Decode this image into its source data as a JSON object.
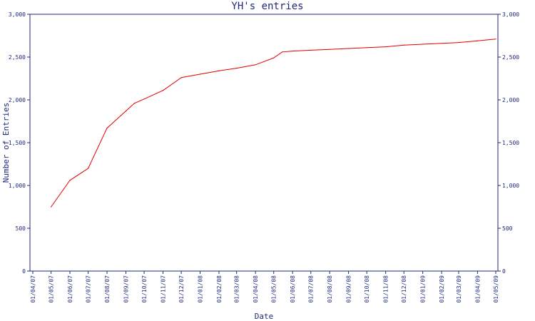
{
  "chart_data": {
    "type": "line",
    "title": "YH's entries",
    "xlabel": "Date",
    "ylabel": "Number of Entries",
    "ylim": [
      0,
      3000
    ],
    "y_ticks": [
      0,
      500,
      1000,
      1500,
      2000,
      2500,
      3000
    ],
    "y_tick_labels": [
      "0",
      "500",
      "1,000",
      "1,500",
      "2,000",
      "2,500",
      "3,000"
    ],
    "x_ticks": [
      "01/04/07",
      "01/05/07",
      "01/06/07",
      "01/07/07",
      "01/08/07",
      "01/09/07",
      "01/10/07",
      "01/11/07",
      "01/12/07",
      "01/01/08",
      "01/02/08",
      "01/03/08",
      "01/04/08",
      "01/05/08",
      "01/06/08",
      "01/07/08",
      "01/08/08",
      "01/09/08",
      "01/10/08",
      "01/11/08",
      "01/12/08",
      "01/01/09",
      "01/02/09",
      "01/03/09",
      "01/04/09",
      "01/05/09"
    ],
    "grid": false,
    "series": [
      {
        "color": "#e00000",
        "points": [
          {
            "x": "2007-05-01",
            "y": 750
          },
          {
            "x": "2007-06-01",
            "y": 1060
          },
          {
            "x": "2007-07-01",
            "y": 1200
          },
          {
            "x": "2007-08-01",
            "y": 1670
          },
          {
            "x": "2007-09-01",
            "y": 1870
          },
          {
            "x": "2007-09-15",
            "y": 1960
          },
          {
            "x": "2007-10-01",
            "y": 2010
          },
          {
            "x": "2007-11-01",
            "y": 2110
          },
          {
            "x": "2007-12-01",
            "y": 2260
          },
          {
            "x": "2008-01-01",
            "y": 2300
          },
          {
            "x": "2008-02-01",
            "y": 2340
          },
          {
            "x": "2008-03-01",
            "y": 2370
          },
          {
            "x": "2008-04-01",
            "y": 2410
          },
          {
            "x": "2008-05-01",
            "y": 2490
          },
          {
            "x": "2008-05-15",
            "y": 2560
          },
          {
            "x": "2008-06-01",
            "y": 2570
          },
          {
            "x": "2008-07-01",
            "y": 2580
          },
          {
            "x": "2008-08-01",
            "y": 2590
          },
          {
            "x": "2008-09-01",
            "y": 2600
          },
          {
            "x": "2008-10-01",
            "y": 2610
          },
          {
            "x": "2008-11-01",
            "y": 2620
          },
          {
            "x": "2008-12-01",
            "y": 2640
          },
          {
            "x": "2009-01-01",
            "y": 2650
          },
          {
            "x": "2009-02-01",
            "y": 2660
          },
          {
            "x": "2009-03-01",
            "y": 2670
          },
          {
            "x": "2009-04-01",
            "y": 2690
          },
          {
            "x": "2009-05-01",
            "y": 2710
          }
        ]
      }
    ],
    "axis_color": "#1f2a7a"
  }
}
